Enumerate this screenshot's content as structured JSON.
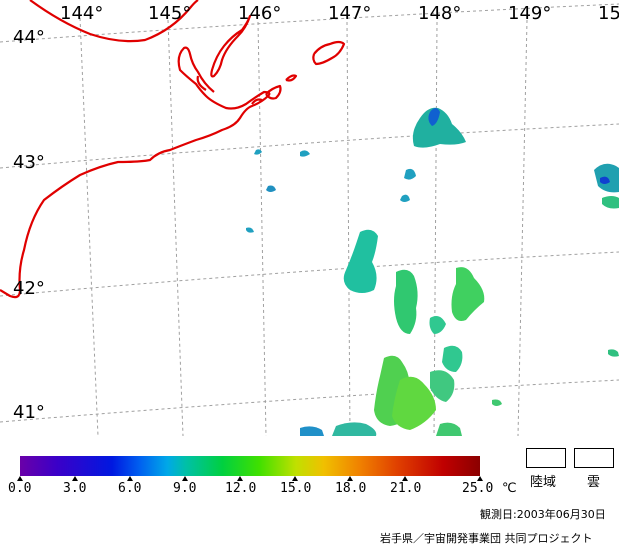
{
  "map": {
    "lon_labels": [
      "144°",
      "145°",
      "146°",
      "147°",
      "148°",
      "149°",
      "15"
    ],
    "lat_labels": [
      "44°",
      "43°",
      "42°",
      "41°"
    ],
    "coastline_color": "#e00000",
    "grid_color": "#a0a0a0"
  },
  "legend": {
    "ticks": [
      "0.0",
      "3.0",
      "6.0",
      "9.0",
      "12.0",
      "15.0",
      "18.0",
      "21.0",
      "25.0"
    ],
    "unit": "℃",
    "land_label": "陸域",
    "cloud_label": "雲"
  },
  "footer": {
    "observation_date": "観測日:2003年06月30日",
    "credit": "岩手県／宇宙開発事業団 共同プロジェクト"
  }
}
